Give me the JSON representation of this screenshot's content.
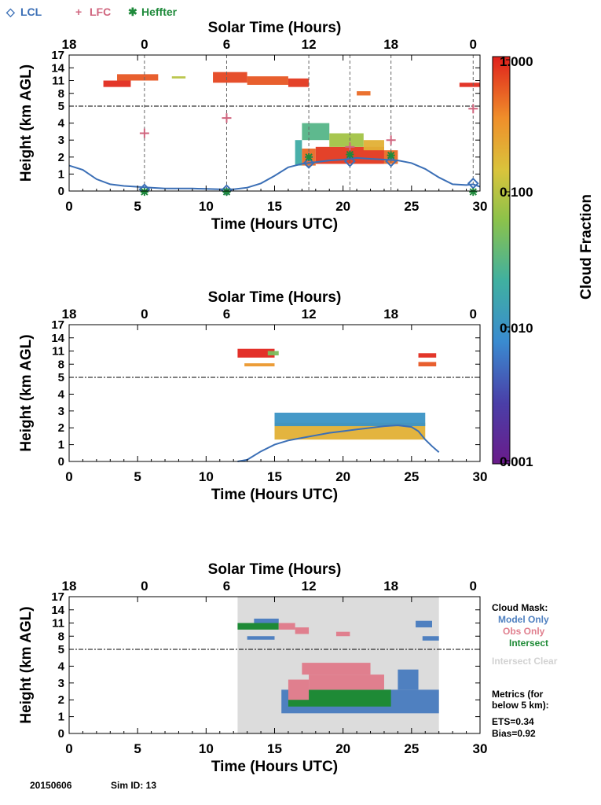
{
  "legend": {
    "items": [
      {
        "symbol": "◇",
        "label": "LCL",
        "color": "#3b6fb6"
      },
      {
        "symbol": "+",
        "label": "LFC",
        "color": "#d0667f"
      },
      {
        "symbol": "✱",
        "label": "Heffter",
        "color": "#1f8a3b"
      }
    ]
  },
  "colorbar": {
    "label": "Cloud Fraction",
    "ticks": [
      "1.000",
      "0.100",
      "0.010",
      "0.001"
    ],
    "range": [
      0.001,
      1.0
    ],
    "scale": "log"
  },
  "footer": {
    "date": "20150606",
    "sim": "Sim ID: 13"
  },
  "cloud_mask": {
    "title": "Cloud Mask:",
    "model_only": "Model Only",
    "obs_only": "Obs Only",
    "intersect": "Intersect",
    "intersect_clear": "Intersect Clear",
    "metrics_title_1": "Metrics (for",
    "metrics_title_2": "below 5 km):",
    "ets": "ETS=0.34",
    "bias": "Bias=0.92",
    "colors": {
      "model": "#4f80c0",
      "obs": "#e07f8e",
      "intersect": "#1e8a36",
      "clear": "#dcdcdc"
    }
  },
  "chart_data": [
    {
      "id": "observed",
      "type": "heatmap",
      "top_title": "Solar Time (Hours)",
      "top_ticks": [
        "18",
        "0",
        "6",
        "12",
        "18",
        "0"
      ],
      "top_tick_hours_utc": [
        0,
        5.5,
        11.5,
        17.5,
        23.5,
        29.5
      ],
      "xlabel": "Time (Hours UTC)",
      "ylabel": "Height (km AGL)",
      "x_ticks": [
        "0",
        "5",
        "10",
        "15",
        "20",
        "25",
        "30"
      ],
      "y_ticks": [
        "0",
        "1",
        "2",
        "3",
        "4",
        "5",
        "8",
        "11",
        "14",
        "17"
      ],
      "xlim": [
        0,
        30
      ],
      "break_height_km": 5,
      "vertical_markers_hours": [
        5.5,
        11.5,
        17.5,
        20.5,
        23.5,
        29.5
      ],
      "lcl_line": [
        [
          0,
          1.5
        ],
        [
          1,
          1.25
        ],
        [
          2,
          0.7
        ],
        [
          3,
          0.4
        ],
        [
          4,
          0.3
        ],
        [
          5,
          0.25
        ],
        [
          6,
          0.2
        ],
        [
          7,
          0.15
        ],
        [
          9,
          0.15
        ],
        [
          11,
          0.1
        ],
        [
          12,
          0.1
        ],
        [
          13,
          0.2
        ],
        [
          14,
          0.45
        ],
        [
          15,
          0.9
        ],
        [
          16,
          1.4
        ],
        [
          17,
          1.6
        ],
        [
          18,
          1.7
        ],
        [
          19,
          1.8
        ],
        [
          20,
          1.85
        ],
        [
          21,
          1.95
        ],
        [
          22,
          1.9
        ],
        [
          23,
          1.85
        ],
        [
          24,
          1.8
        ],
        [
          25,
          1.65
        ],
        [
          26,
          1.3
        ],
        [
          27,
          0.8
        ],
        [
          28,
          0.4
        ],
        [
          29,
          0.35
        ],
        [
          29.5,
          0.4
        ],
        [
          30,
          0.25
        ]
      ],
      "lcl_points": [
        [
          5.5,
          0.1
        ],
        [
          11.5,
          0.05
        ],
        [
          17.5,
          1.65
        ],
        [
          20.5,
          1.75
        ],
        [
          23.5,
          1.75
        ],
        [
          29.5,
          0.45
        ]
      ],
      "lfc_points": [
        [
          5.5,
          3.4
        ],
        [
          11.5,
          4.3
        ],
        [
          17.5,
          2.0
        ],
        [
          20.5,
          2.6
        ],
        [
          23.5,
          3.0
        ],
        [
          29.5,
          4.85
        ]
      ],
      "heffter_points": [
        [
          5.5,
          -0.05
        ],
        [
          11.5,
          -0.05
        ],
        [
          17.5,
          2.0
        ],
        [
          20.5,
          2.15
        ],
        [
          23.5,
          2.1
        ],
        [
          29.5,
          -0.05
        ]
      ],
      "cloud_blocks": [
        {
          "t0": 2.5,
          "t1": 4.5,
          "h0": 9.5,
          "h1": 11,
          "cf": 0.9
        },
        {
          "t0": 3.5,
          "t1": 6.5,
          "h0": 11,
          "h1": 12.5,
          "cf": 0.6
        },
        {
          "t0": 7.5,
          "t1": 8.5,
          "h0": 11.5,
          "h1": 12,
          "cf": 0.1
        },
        {
          "t0": 10.5,
          "t1": 13,
          "h0": 10.5,
          "h1": 13,
          "cf": 0.7
        },
        {
          "t0": 13,
          "t1": 16,
          "h0": 10,
          "h1": 12,
          "cf": 0.6
        },
        {
          "t0": 16,
          "t1": 17.5,
          "h0": 9.5,
          "h1": 11.5,
          "cf": 0.8
        },
        {
          "t0": 21,
          "t1": 22,
          "h0": 7.5,
          "h1": 8.5,
          "cf": 0.5
        },
        {
          "t0": 28.5,
          "t1": 30,
          "h0": 9.5,
          "h1": 10.5,
          "cf": 0.9
        },
        {
          "t0": 16.5,
          "t1": 17,
          "h0": 1.5,
          "h1": 3,
          "cf": 0.02
        },
        {
          "t0": 17,
          "t1": 18,
          "h0": 1.5,
          "h1": 2.5,
          "cf": 0.5
        },
        {
          "t0": 18,
          "t1": 23,
          "h0": 1.6,
          "h1": 2.6,
          "cf": 0.8
        },
        {
          "t0": 23,
          "t1": 24,
          "h0": 1.6,
          "h1": 2.4,
          "cf": 0.5
        },
        {
          "t0": 17,
          "t1": 19,
          "h0": 3,
          "h1": 4,
          "cf": 0.03
        },
        {
          "t0": 19,
          "t1": 21.5,
          "h0": 2.6,
          "h1": 3.4,
          "cf": 0.08
        },
        {
          "t0": 21.5,
          "t1": 23,
          "h0": 2.4,
          "h1": 3,
          "cf": 0.2
        }
      ]
    },
    {
      "id": "model",
      "type": "heatmap",
      "top_title": "Solar Time (Hours)",
      "top_ticks": [
        "18",
        "0",
        "6",
        "12",
        "18",
        "0"
      ],
      "top_tick_hours_utc": [
        0,
        5.5,
        11.5,
        17.5,
        23.5,
        29.5
      ],
      "xlabel": "Time (Hours UTC)",
      "ylabel": "Height (km AGL)",
      "x_ticks": [
        "0",
        "5",
        "10",
        "15",
        "20",
        "25",
        "30"
      ],
      "y_ticks": [
        "0",
        "1",
        "2",
        "3",
        "4",
        "5",
        "8",
        "11",
        "14",
        "17"
      ],
      "xlim": [
        0,
        30
      ],
      "break_height_km": 5,
      "lcl_line": [
        [
          12.3,
          0
        ],
        [
          13,
          0.1
        ],
        [
          14,
          0.6
        ],
        [
          15,
          1.0
        ],
        [
          16,
          1.25
        ],
        [
          17,
          1.4
        ],
        [
          18,
          1.55
        ],
        [
          19,
          1.7
        ],
        [
          20,
          1.8
        ],
        [
          21,
          1.9
        ],
        [
          22,
          2.0
        ],
        [
          23,
          2.1
        ],
        [
          24,
          2.15
        ],
        [
          25,
          2.05
        ],
        [
          25.5,
          1.8
        ],
        [
          26,
          1.3
        ],
        [
          26.5,
          0.9
        ],
        [
          27,
          0.55
        ]
      ],
      "cloud_blocks": [
        {
          "t0": 12.3,
          "t1": 15,
          "h0": 9.5,
          "h1": 11.5,
          "cf": 0.95
        },
        {
          "t0": 14.5,
          "t1": 15.3,
          "h0": 10,
          "h1": 11,
          "cf": 0.05
        },
        {
          "t0": 12.8,
          "t1": 15,
          "h0": 7.5,
          "h1": 8.2,
          "cf": 0.3
        },
        {
          "t0": 25.5,
          "t1": 26.8,
          "h0": 9.5,
          "h1": 10.5,
          "cf": 0.9
        },
        {
          "t0": 25.5,
          "t1": 26.8,
          "h0": 7.5,
          "h1": 8.5,
          "cf": 0.6
        },
        {
          "t0": 15,
          "t1": 26,
          "h0": 1.3,
          "h1": 2.3,
          "cf": 0.2
        },
        {
          "t0": 15,
          "t1": 26,
          "h0": 2.1,
          "h1": 2.9,
          "cf": 0.01
        }
      ]
    },
    {
      "id": "cloud_mask",
      "type": "heatmap",
      "top_title": "Solar Time (Hours)",
      "top_ticks": [
        "18",
        "0",
        "6",
        "12",
        "18",
        "0"
      ],
      "top_tick_hours_utc": [
        0,
        5.5,
        11.5,
        17.5,
        23.5,
        29.5
      ],
      "xlabel": "Time (Hours UTC)",
      "ylabel": "Height (km AGL)",
      "x_ticks": [
        "0",
        "5",
        "10",
        "15",
        "20",
        "25",
        "30"
      ],
      "y_ticks": [
        "0",
        "1",
        "2",
        "3",
        "4",
        "5",
        "8",
        "11",
        "14",
        "17"
      ],
      "xlim": [
        0,
        30
      ],
      "break_height_km": 5,
      "clear_region_hours": [
        12.3,
        27
      ],
      "mask_blocks": [
        {
          "t0": 12.3,
          "t1": 15.3,
          "h0": 9.5,
          "h1": 11,
          "cls": "intersect"
        },
        {
          "t0": 13.5,
          "t1": 15.3,
          "h0": 11,
          "h1": 12,
          "cls": "model"
        },
        {
          "t0": 15.3,
          "t1": 16.5,
          "h0": 9.5,
          "h1": 11,
          "cls": "obs"
        },
        {
          "t0": 16.5,
          "t1": 17.5,
          "h0": 8.5,
          "h1": 10,
          "cls": "obs"
        },
        {
          "t0": 13,
          "t1": 15,
          "h0": 7.2,
          "h1": 8,
          "cls": "model"
        },
        {
          "t0": 19.5,
          "t1": 20.5,
          "h0": 8,
          "h1": 9,
          "cls": "obs"
        },
        {
          "t0": 25.3,
          "t1": 26.5,
          "h0": 10,
          "h1": 11.5,
          "cls": "model"
        },
        {
          "t0": 25.8,
          "t1": 27,
          "h0": 7,
          "h1": 8,
          "cls": "model"
        },
        {
          "t0": 15.5,
          "t1": 27,
          "h0": 1.2,
          "h1": 2.6,
          "cls": "model"
        },
        {
          "t0": 16,
          "t1": 23.5,
          "h0": 1.6,
          "h1": 2.6,
          "cls": "intersect"
        },
        {
          "t0": 16,
          "t1": 17.5,
          "h0": 2.0,
          "h1": 3.2,
          "cls": "obs"
        },
        {
          "t0": 17.5,
          "t1": 23,
          "h0": 2.6,
          "h1": 3.5,
          "cls": "obs"
        },
        {
          "t0": 17,
          "t1": 22,
          "h0": 3.5,
          "h1": 4.2,
          "cls": "obs"
        },
        {
          "t0": 24,
          "t1": 25.5,
          "h0": 2.6,
          "h1": 3.8,
          "cls": "model"
        }
      ]
    }
  ]
}
